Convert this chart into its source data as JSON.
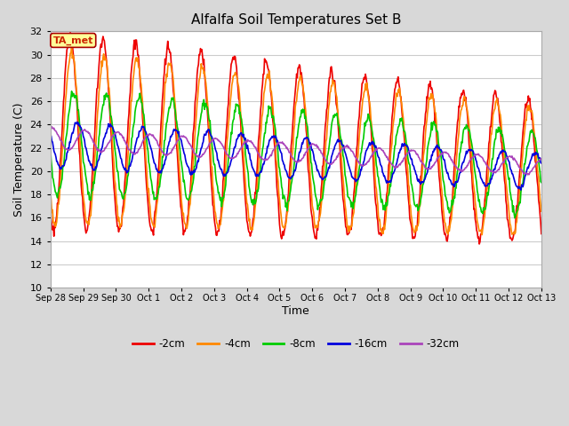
{
  "title": "Alfalfa Soil Temperatures Set B",
  "xlabel": "Time",
  "ylabel": "Soil Temperature (C)",
  "ylim": [
    10,
    32
  ],
  "fig_bg_color": "#d8d8d8",
  "plot_bg_color": "#ffffff",
  "grid_color": "#cccccc",
  "series": {
    "-2cm": {
      "color": "#ee0000",
      "linewidth": 1.2
    },
    "-4cm": {
      "color": "#ff8800",
      "linewidth": 1.2
    },
    "-8cm": {
      "color": "#00cc00",
      "linewidth": 1.2
    },
    "-16cm": {
      "color": "#0000dd",
      "linewidth": 1.2
    },
    "-32cm": {
      "color": "#aa44bb",
      "linewidth": 1.2
    }
  },
  "xtick_labels": [
    "Sep 28",
    "Sep 29",
    "Sep 30",
    "Oct 1",
    "Oct 2",
    "Oct 3",
    "Oct 4",
    "Oct 5",
    "Oct 6",
    "Oct 7",
    "Oct 8",
    "Oct 9",
    "Oct 10",
    "Oct 11",
    "Oct 12",
    "Oct 13"
  ],
  "annotation_text": "TA_met",
  "annotation_color": "#cc2200",
  "annotation_bg": "#ffff99",
  "annotation_border": "#aa0000"
}
